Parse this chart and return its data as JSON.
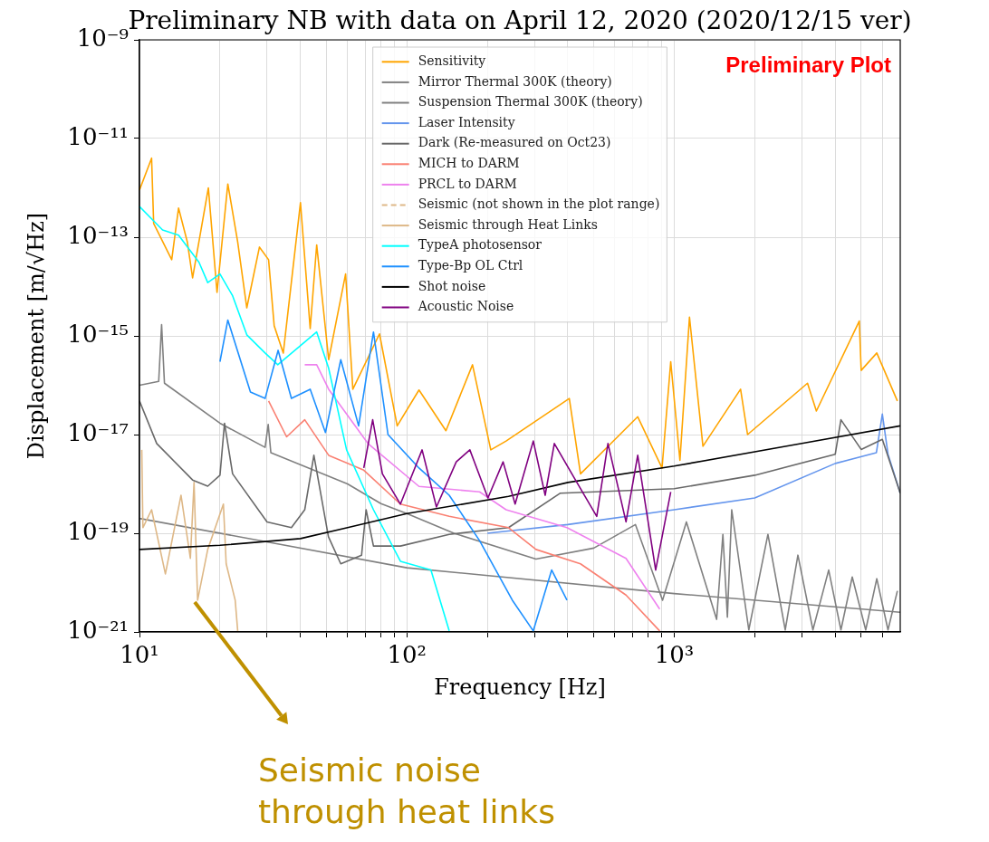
{
  "chart_data": {
    "type": "line",
    "title": "Preliminary NB with data on April 12, 2020 (2020/12/15 ver)",
    "xlabel": "Frequency [Hz]",
    "ylabel": "Displacement [m/√Hz]",
    "log": "xy",
    "grid": true,
    "legend": "top",
    "xlim": [
      10,
      7000
    ],
    "ylim": [
      1e-21,
      1e-09
    ],
    "xticks": [
      {
        "value": 10,
        "label": "10¹"
      },
      {
        "value": 20,
        "label": null
      },
      {
        "value": 30,
        "label": null
      },
      {
        "value": 40,
        "label": null
      },
      {
        "value": 50,
        "label": null
      },
      {
        "value": 60,
        "label": null
      },
      {
        "value": 70,
        "label": null
      },
      {
        "value": 80,
        "label": null
      },
      {
        "value": 90,
        "label": null
      },
      {
        "value": 100,
        "label": "10²"
      },
      {
        "value": 200,
        "label": null
      },
      {
        "value": 300,
        "label": null
      },
      {
        "value": 400,
        "label": null
      },
      {
        "value": 500,
        "label": null
      },
      {
        "value": 600,
        "label": null
      },
      {
        "value": 700,
        "label": null
      },
      {
        "value": 800,
        "label": null
      },
      {
        "value": 900,
        "label": null
      },
      {
        "value": 1000,
        "label": "10³"
      },
      {
        "value": 2000,
        "label": null
      },
      {
        "value": 3000,
        "label": null
      },
      {
        "value": 4000,
        "label": null
      },
      {
        "value": 5000,
        "label": null
      },
      {
        "value": 6000,
        "label": null
      }
    ],
    "yticks": [
      {
        "value": 1e-21,
        "label": "10⁻²¹"
      },
      {
        "value": 1e-19,
        "label": "10⁻¹⁹"
      },
      {
        "value": 1e-17,
        "label": "10⁻¹⁷"
      },
      {
        "value": 1e-15,
        "label": "10⁻¹⁵"
      },
      {
        "value": 1e-13,
        "label": "10⁻¹³"
      },
      {
        "value": 1e-11,
        "label": "10⁻¹¹"
      },
      {
        "value": 1e-09,
        "label": "10⁻⁹"
      }
    ],
    "annotations": [
      "Preliminary Plot",
      "Seismic noise\nthrough heat links"
    ],
    "series": [
      {
        "name": "Sensitivity",
        "color": "#ffa500",
        "x": [
          10,
          11.1,
          11.3,
          13.2,
          14,
          15.1,
          15.8,
          18.1,
          19.5,
          21.4,
          23.3,
          25.2,
          28.1,
          30.4,
          31.9,
          34.5,
          40,
          43.5,
          46,
          51,
          59,
          62.8,
          79,
          92,
          111,
          140,
          176,
          206,
          235,
          405,
          446,
          730,
          900,
          970,
          1050,
          1140,
          1280,
          1770,
          1880,
          3150,
          3400,
          4920,
          5000,
          5720,
          6830
        ],
        "values": [
          9e-13,
          4e-12,
          1.9e-13,
          3.5e-14,
          3.9e-13,
          8e-14,
          1.5e-14,
          1e-12,
          7.6e-15,
          1.2e-12,
          8e-14,
          3.7e-15,
          6.3e-14,
          3.5e-14,
          1.6e-15,
          4.5e-16,
          5e-13,
          1.4e-15,
          7e-14,
          3.3e-16,
          1.8e-14,
          8.3e-17,
          1.1e-15,
          1.5e-17,
          8e-17,
          1.2e-17,
          2.6e-16,
          4.9e-18,
          7.4e-18,
          5.4e-17,
          1.6e-18,
          2.3e-17,
          2.1e-18,
          3e-16,
          3e-18,
          2.4e-15,
          5.8e-18,
          8.3e-17,
          1e-17,
          1.1e-16,
          3e-17,
          2e-15,
          2e-16,
          4.5e-16,
          4.8e-17
        ]
      },
      {
        "name": "Mirror Thermal 300K (theory)",
        "color": "#808080",
        "x": [
          10,
          100,
          1000,
          7000
        ],
        "values": [
          2e-19,
          2e-20,
          6e-21,
          2.5e-21
        ]
      },
      {
        "name": "Suspension Thermal 300K (theory)",
        "color": "#808080",
        "x": [
          10,
          11.8,
          12.1,
          12.4,
          20,
          29.5,
          30.3,
          31,
          60,
          80,
          100,
          150,
          304,
          500,
          716,
          904,
          1110,
          1440,
          1520,
          1580,
          1640,
          1900,
          2240,
          2600,
          2900,
          3300,
          3780,
          4200,
          4630,
          5200,
          5720,
          6300,
          6830
        ],
        "values": [
          1e-16,
          1.2e-16,
          1.7e-15,
          1.1e-16,
          1.7e-17,
          5.5e-18,
          1.6e-17,
          4.3e-18,
          1e-18,
          4e-19,
          2.5e-19,
          1e-19,
          3e-20,
          5e-20,
          1.5e-19,
          4.4e-21,
          1.7e-19,
          1.8e-21,
          9.5e-20,
          2e-21,
          3e-19,
          1.1e-21,
          9.5e-20,
          1.1e-21,
          3.6e-20,
          1.1e-21,
          1.8e-20,
          1.1e-21,
          1.3e-20,
          1.1e-21,
          1.2e-20,
          1.1e-21,
          6.8e-21
        ]
      },
      {
        "name": "Laser Intensity",
        "color": "#6495ed",
        "x": [
          200,
          400,
          1000,
          2000,
          4000,
          5700,
          6000,
          6300,
          7000
        ],
        "values": [
          1e-19,
          1.5e-19,
          3e-19,
          5.2e-19,
          2.6e-18,
          4.3e-18,
          2.6e-17,
          4e-18,
          6.5e-19
        ]
      },
      {
        "name": "Dark (Re-measured on Oct23)",
        "color": "#696969",
        "x": [
          10,
          11.6,
          15.8,
          18,
          20,
          20.8,
          22.3,
          30,
          37,
          41.5,
          44.9,
          50.9,
          56.6,
          67.7,
          70.4,
          75,
          94.6,
          144,
          240,
          375,
          1000,
          2000,
          4000,
          4200,
          5000,
          6000,
          7000
        ],
        "values": [
          4.8e-17,
          6.6e-18,
          1.2e-18,
          9e-19,
          1.5e-18,
          1.7e-17,
          1.6e-18,
          1.7e-19,
          1.3e-19,
          3e-19,
          3.8e-18,
          8.5e-20,
          2.4e-20,
          3.6e-20,
          3e-19,
          5.5e-20,
          5.5e-20,
          9.5e-20,
          1.3e-19,
          6.5e-19,
          8e-19,
          1.5e-18,
          4e-18,
          2e-17,
          5e-18,
          8e-18,
          6.5e-19
        ]
      },
      {
        "name": "MICH to DARM",
        "color": "#fa8072",
        "x": [
          30.4,
          35.5,
          41.5,
          51,
          69,
          94.6,
          144,
          240,
          304,
          446,
          660,
          882
        ],
        "values": [
          4.8e-17,
          9e-18,
          2e-17,
          3.8e-18,
          1.9e-18,
          3.9e-19,
          2.2e-19,
          1.3e-19,
          4.7e-20,
          2.4e-20,
          5.6e-21,
          1.05e-21
        ]
      },
      {
        "name": "PRCL to DARM",
        "color": "#ee82ee",
        "x": [
          41.5,
          46,
          51,
          71.5,
          111,
          187,
          235,
          397,
          660,
          882
        ],
        "values": [
          2.6e-16,
          2.6e-16,
          8.3e-17,
          6.6e-18,
          8.9e-19,
          6.9e-19,
          3e-19,
          1.3e-19,
          3.1e-20,
          2.9e-21
        ]
      },
      {
        "name": "Seismic (not shown in the plot range)",
        "color": "#deb887",
        "line_style": "dashed"
      },
      {
        "name": "Seismic through Heat Links",
        "color": "#deb887",
        "x": [
          10.2,
          10.3,
          11.1,
          12.5,
          14.3,
          15.5,
          16,
          16.5,
          18,
          20.6,
          21.1,
          22.8,
          23.3
        ],
        "values": [
          4.9e-18,
          1.3e-19,
          3e-19,
          1.5e-20,
          5.9e-19,
          3.1e-20,
          1.07e-18,
          4.4e-21,
          4.7e-20,
          3.9e-19,
          2.4e-20,
          4.4e-21,
          1.05e-21
        ]
      },
      {
        "name": "TypeA photosensor",
        "color": "#00ffff",
        "x": [
          10,
          12.2,
          14,
          16.7,
          18,
          20,
          22.3,
          25.2,
          29.5,
          32.9,
          46,
          51,
          59.5,
          75,
          94.6,
          123,
          144
        ],
        "values": [
          4.2e-13,
          1.4e-13,
          1.1e-13,
          3.1e-14,
          1.2e-14,
          1.8e-14,
          6.5e-15,
          1.05e-15,
          4.5e-16,
          2.6e-16,
          1.2e-15,
          2.2e-16,
          4.9e-18,
          3e-19,
          2.7e-20,
          1.8e-20,
          1.05e-21
        ]
      },
      {
        "name": "Type-Bp OL Ctrl",
        "color": "#1e90ff",
        "x": [
          20,
          21.4,
          26,
          29.5,
          33,
          37,
          43.5,
          49.6,
          56.6,
          66,
          75,
          85,
          111,
          144,
          187,
          248,
          297,
          348,
          397
        ],
        "values": [
          3e-16,
          2.1e-15,
          7.3e-17,
          5.4e-17,
          5.1e-16,
          5.4e-17,
          8.3e-17,
          1.1e-17,
          3.3e-16,
          1.5e-17,
          1.2e-15,
          1e-17,
          2.1e-18,
          5.9e-19,
          7.1e-20,
          4.4e-21,
          1.05e-21,
          1.8e-20,
          4.4e-21
        ]
      },
      {
        "name": "Shot noise",
        "color": "#000000",
        "x": [
          10,
          20,
          40,
          60,
          100,
          240,
          400,
          1000,
          3000,
          7000
        ],
        "values": [
          4.7e-20,
          5.7e-20,
          7.8e-20,
          1.3e-19,
          2.5e-19,
          5.6e-19,
          1.07e-18,
          2.3e-18,
          6.6e-18,
          1.5e-17
        ]
      },
      {
        "name": "Acoustic Noise",
        "color": "#800080",
        "x": [
          69,
          74.5,
          81,
          94.6,
          114,
          129,
          153,
          172,
          201,
          229,
          254,
          297,
          329,
          356,
          427,
          513,
          565,
          660,
          730,
          852,
          970
        ],
        "values": [
          2.1e-18,
          2e-17,
          1.6e-18,
          3.9e-19,
          4.9e-18,
          3.4e-19,
          2.8e-18,
          4.9e-18,
          5.2e-19,
          2.8e-18,
          3.9e-19,
          7.4e-18,
          5.9e-19,
          6.6e-18,
          1.2e-18,
          2.2e-19,
          6.6e-18,
          1.7e-19,
          3.8e-18,
          1.8e-20,
          6.9e-19
        ]
      }
    ]
  }
}
